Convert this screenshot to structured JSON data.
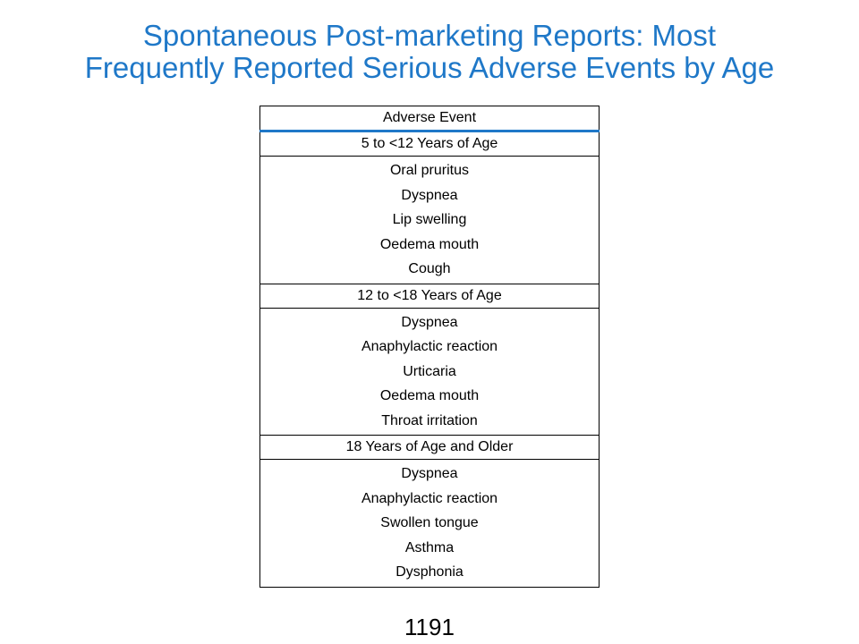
{
  "slide": {
    "title_line1": "Spontaneous Post-marketing Reports: Most",
    "title_line2": "Frequently Reported Serious Adverse Events by Age",
    "page_number": "1191"
  },
  "table": {
    "header": "Adverse Event",
    "groups": [
      {
        "label": "5 to <12 Years of Age",
        "events": [
          "Oral pruritus",
          "Dyspnea",
          "Lip swelling",
          "Oedema mouth",
          "Cough"
        ]
      },
      {
        "label": "12 to <18 Years of Age",
        "events": [
          "Dyspnea",
          "Anaphylactic reaction",
          "Urticaria",
          "Oedema mouth",
          "Throat irritation"
        ]
      },
      {
        "label": "18 Years of Age and Older",
        "events": [
          "Dyspnea",
          "Anaphylactic reaction",
          "Swollen tongue",
          "Asthma",
          "Dysphonia"
        ]
      }
    ]
  },
  "colors": {
    "title": "#1f78c8",
    "header_rule": "#1f78c8",
    "text": "#000000"
  }
}
